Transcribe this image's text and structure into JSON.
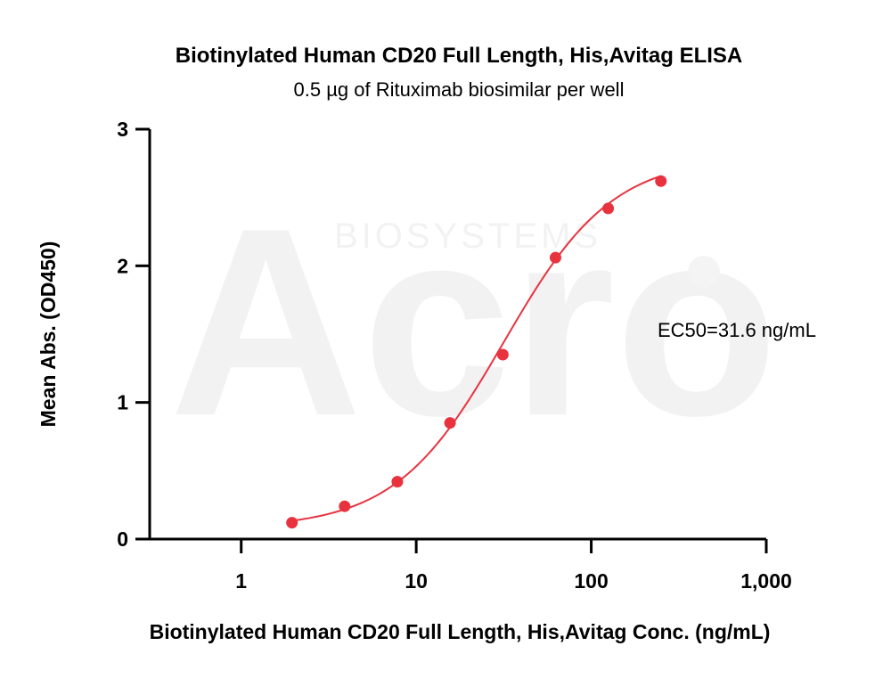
{
  "chart_data": {
    "type": "scatter",
    "title": "Biotinylated Human CD20 Full Length, His,Avitag ELISA",
    "subtitle": "0.5 µg of Rituximab biosimilar per well",
    "xlabel": "Biotinylated Human CD20 Full Length, His,Avitag Conc. (ng/mL)",
    "ylabel": "Mean Abs. (OD450)",
    "x_scale": "log",
    "xlim": [
      0.3,
      1000
    ],
    "ylim": [
      0,
      3
    ],
    "x_ticks": [
      1,
      10,
      100,
      1000
    ],
    "x_tick_labels": [
      "1",
      "10",
      "100",
      "1,000"
    ],
    "y_ticks": [
      0,
      1,
      2,
      3
    ],
    "y_tick_labels": [
      "0",
      "1",
      "2",
      "3"
    ],
    "grid": false,
    "color": "#e8333f",
    "series": [
      {
        "x": [
          1.95,
          3.9,
          7.8,
          15.6,
          31.25,
          62.5,
          125,
          250
        ],
        "y": [
          0.12,
          0.24,
          0.42,
          0.85,
          1.35,
          2.06,
          2.42,
          2.62
        ]
      }
    ],
    "fit": {
      "model": "4PL",
      "bottom": 0.08,
      "top": 2.8,
      "ec50": 31.6,
      "hill": 1.4
    },
    "annotation": "EC50=31.6 ng/mL",
    "watermark": {
      "logo": "Acro",
      "text": "BIOSYSTEMS"
    }
  }
}
